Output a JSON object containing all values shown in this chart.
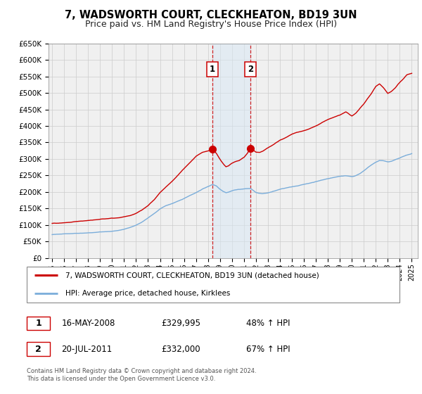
{
  "title": "7, WADSWORTH COURT, CLECKHEATON, BD19 3UN",
  "subtitle": "Price paid vs. HM Land Registry's House Price Index (HPI)",
  "title_fontsize": 10.5,
  "subtitle_fontsize": 9,
  "ylim": [
    0,
    650000
  ],
  "yticks": [
    0,
    50000,
    100000,
    150000,
    200000,
    250000,
    300000,
    350000,
    400000,
    450000,
    500000,
    550000,
    600000,
    650000
  ],
  "ytick_labels": [
    "£0",
    "£50K",
    "£100K",
    "£150K",
    "£200K",
    "£250K",
    "£300K",
    "£350K",
    "£400K",
    "£450K",
    "£500K",
    "£550K",
    "£600K",
    "£650K"
  ],
  "xlim_start": 1994.7,
  "xlim_end": 2025.5,
  "xtick_years": [
    1995,
    1996,
    1997,
    1998,
    1999,
    2000,
    2001,
    2002,
    2003,
    2004,
    2005,
    2006,
    2007,
    2008,
    2009,
    2010,
    2011,
    2012,
    2013,
    2014,
    2015,
    2016,
    2017,
    2018,
    2019,
    2020,
    2021,
    2022,
    2023,
    2024,
    2025
  ],
  "sale1_x": 2008.37,
  "sale1_y": 329995,
  "sale2_x": 2011.55,
  "sale2_y": 332000,
  "sale1_date": "16-MAY-2008",
  "sale1_price": "£329,995",
  "sale1_hpi": "48% ↑ HPI",
  "sale2_date": "20-JUL-2011",
  "sale2_price": "£332,000",
  "sale2_hpi": "67% ↑ HPI",
  "line1_color": "#cc0000",
  "line2_color": "#7aadda",
  "shade_color": "#d8e8f5",
  "dot_color": "#cc0000",
  "legend_line1": "7, WADSWORTH COURT, CLECKHEATON, BD19 3UN (detached house)",
  "legend_line2": "HPI: Average price, detached house, Kirklees",
  "footnote": "Contains HM Land Registry data © Crown copyright and database right 2024.\nThis data is licensed under the Open Government Licence v3.0.",
  "grid_color": "#cccccc",
  "bg_color": "#ffffff",
  "plot_bg_color": "#f0f0f0"
}
